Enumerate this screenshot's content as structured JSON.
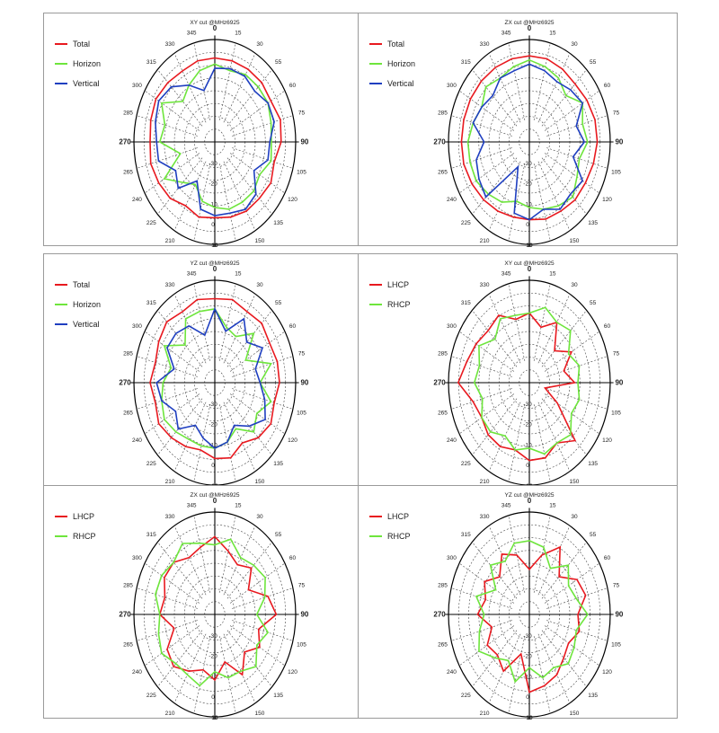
{
  "chart_data": [
    {
      "type": "line",
      "polar": true,
      "title": "XY cut @MHz6925",
      "angle_labels": [
        "0",
        "15",
        "30",
        "55",
        "60",
        "75",
        "90",
        "105",
        "120",
        "135",
        "150",
        "165",
        "180",
        "195",
        "210",
        "225",
        "240",
        "265",
        "270",
        "285",
        "300",
        "315",
        "330",
        "345"
      ],
      "radial_labels": [
        "-30",
        "-20",
        "-10",
        "0",
        "10"
      ],
      "rlim": [
        -40,
        10
      ],
      "legend_position": "top-left",
      "series": [
        {
          "name": "Total",
          "color": "#e8191f",
          "values": [
            1,
            1,
            1,
            1,
            0,
            2,
            1,
            -2,
            0,
            -1,
            -1,
            -2,
            -3,
            -2,
            -4,
            -1,
            0,
            1,
            0,
            1,
            2,
            1,
            0,
            1
          ]
        },
        {
          "name": "Horizon",
          "color": "#6ee53c",
          "values": [
            -2,
            -4,
            -2,
            -2,
            -2,
            -4,
            -5,
            -4,
            -8,
            -6,
            -6,
            -6,
            -8,
            -10,
            -16,
            -12,
            -4,
            -18,
            -6,
            -8,
            -2,
            -12,
            -8,
            -4
          ]
        },
        {
          "name": "Vertical",
          "color": "#1f3fc0",
          "values": [
            -4,
            -3,
            -3,
            -5,
            -2,
            -2,
            -6,
            -6,
            -12,
            -4,
            -2,
            -4,
            -4,
            -6,
            -18,
            -8,
            -12,
            -4,
            -4,
            -2,
            0,
            -2,
            -8,
            -14
          ]
        }
      ]
    },
    {
      "type": "line",
      "polar": true,
      "title": "ZX cut @MHz6925",
      "angle_labels": [
        "0",
        "15",
        "30",
        "55",
        "60",
        "75",
        "90",
        "105",
        "120",
        "135",
        "150",
        "165",
        "180",
        "195",
        "210",
        "225",
        "240",
        "265",
        "270",
        "285",
        "300",
        "315",
        "330",
        "345"
      ],
      "radial_labels": [
        "-30",
        "-20",
        "-10",
        "0",
        "10"
      ],
      "rlim": [
        -40,
        10
      ],
      "legend_position": "top-left",
      "series": [
        {
          "name": "Total",
          "color": "#e8191f",
          "values": [
            2,
            2,
            1,
            0,
            1,
            2,
            2,
            1,
            0,
            0,
            -1,
            -1,
            -2,
            -2,
            -1,
            0,
            1,
            2,
            2,
            2,
            2,
            2,
            2,
            2
          ]
        },
        {
          "name": "Horizon",
          "color": "#6ee53c",
          "values": [
            0,
            -2,
            -4,
            -8,
            -2,
            -6,
            -4,
            -8,
            -6,
            -2,
            -4,
            -6,
            -8,
            -10,
            -6,
            -4,
            -2,
            -2,
            -2,
            -4,
            -6,
            -2,
            -4,
            -2
          ]
        },
        {
          "name": "Vertical",
          "color": "#1f3fc0",
          "values": [
            -2,
            -4,
            -6,
            -4,
            -2,
            -10,
            -6,
            -12,
            -2,
            -4,
            -2,
            -6,
            -2,
            -4,
            -26,
            -2,
            -4,
            -6,
            -12,
            -4,
            -6,
            -8,
            -4,
            -4
          ]
        }
      ]
    },
    {
      "type": "line",
      "polar": true,
      "title": "YZ cut @MHz6925",
      "angle_labels": [
        "0",
        "15",
        "30",
        "55",
        "60",
        "75",
        "90",
        "105",
        "120",
        "135",
        "150",
        "165",
        "180",
        "195",
        "210",
        "225",
        "240",
        "265",
        "270",
        "285",
        "300",
        "315",
        "330",
        "345"
      ],
      "radial_labels": [
        "-30",
        "-20",
        "-10",
        "0",
        "10"
      ],
      "rlim": [
        -40,
        10
      ],
      "legend_position": "top-left",
      "series": [
        {
          "name": "Total",
          "color": "#e8191f",
          "values": [
            1,
            2,
            0,
            1,
            -1,
            0,
            0,
            -2,
            0,
            -2,
            -6,
            -2,
            -3,
            -6,
            -4,
            -2,
            0,
            -2,
            0,
            -2,
            0,
            2,
            0,
            2
          ]
        },
        {
          "name": "Horizon",
          "color": "#6ee53c",
          "values": [
            -4,
            -12,
            -14,
            -6,
            -18,
            -4,
            -12,
            -4,
            -10,
            -6,
            -14,
            -10,
            -8,
            -8,
            -8,
            -6,
            -4,
            -6,
            -8,
            -12,
            -4,
            -14,
            -4,
            -4
          ]
        },
        {
          "name": "Vertical",
          "color": "#1f3fc0",
          "values": [
            -4,
            -14,
            -4,
            -12,
            -6,
            -14,
            -12,
            -8,
            -4,
            -10,
            -16,
            -10,
            -8,
            -12,
            -16,
            -8,
            -12,
            -6,
            -4,
            -14,
            -6,
            -6,
            -8,
            -16
          ]
        }
      ]
    },
    {
      "type": "line",
      "polar": true,
      "title": "XY cut @MHz6925",
      "angle_labels": [
        "0",
        "15",
        "30",
        "55",
        "60",
        "75",
        "90",
        "105",
        "120",
        "135",
        "150",
        "165",
        "180",
        "195",
        "210",
        "225",
        "240",
        "265",
        "270",
        "285",
        "300",
        "315",
        "330",
        "345"
      ],
      "radial_labels": [
        "-30",
        "-20",
        "-10",
        "0",
        "10"
      ],
      "rlim": [
        -40,
        10
      ],
      "legend_position": "top-left",
      "series": [
        {
          "name": "LHCP",
          "color": "#e8191f",
          "values": [
            -6,
            -12,
            -6,
            -18,
            -10,
            -18,
            -12,
            -30,
            -20,
            0,
            -6,
            -2,
            -2,
            -6,
            -4,
            -4,
            -6,
            -4,
            4,
            0,
            -2,
            -4,
            -2,
            -8
          ]
        },
        {
          "name": "RHCP",
          "color": "#6ee53c",
          "values": [
            -6,
            -2,
            -6,
            -4,
            -12,
            -8,
            -10,
            -8,
            -10,
            -4,
            -6,
            -4,
            -8,
            -6,
            -10,
            -6,
            -6,
            -10,
            -6,
            -8,
            -4,
            -10,
            -4,
            -6
          ]
        }
      ]
    },
    {
      "type": "line",
      "polar": true,
      "title": "ZX cut @MHz6925",
      "angle_labels": [
        "0",
        "15",
        "30",
        "55",
        "60",
        "75",
        "90",
        "105",
        "120",
        "135",
        "150",
        "165",
        "180",
        "195",
        "210",
        "225",
        "240",
        "265",
        "270",
        "285",
        "300",
        "315",
        "330",
        "345"
      ],
      "radial_labels": [
        "-30",
        "-20",
        "-10",
        "0",
        "10"
      ],
      "rlim": [
        -40,
        10
      ],
      "legend_position": "top-left",
      "series": [
        {
          "name": "LHCP",
          "color": "#e8191f",
          "values": [
            -2,
            -8,
            -12,
            -8,
            -16,
            -6,
            -2,
            -12,
            -8,
            -14,
            -6,
            -16,
            -8,
            -12,
            -8,
            -4,
            -6,
            -14,
            -6,
            -8,
            -4,
            -4,
            -8,
            -6
          ]
        },
        {
          "name": "RHCP",
          "color": "#6ee53c",
          "values": [
            -6,
            -2,
            -8,
            -6,
            -4,
            -8,
            -14,
            -6,
            -10,
            -4,
            -8,
            -8,
            -12,
            -4,
            -6,
            -6,
            -2,
            -4,
            -6,
            -2,
            -2,
            -4,
            0,
            -4
          ]
        }
      ]
    },
    {
      "type": "line",
      "polar": true,
      "title": "YZ cut @MHz6925",
      "angle_labels": [
        "0",
        "15",
        "30",
        "55",
        "60",
        "75",
        "90",
        "105",
        "120",
        "135",
        "150",
        "165",
        "180",
        "195",
        "210",
        "225",
        "240",
        "265",
        "270",
        "285",
        "300",
        "315",
        "330",
        "345"
      ],
      "radial_labels": [
        "-30",
        "-20",
        "-10",
        "0",
        "10"
      ],
      "rlim": [
        -40,
        10
      ],
      "legend_position": "top-left",
      "series": [
        {
          "name": "LHCP",
          "color": "#e8191f",
          "values": [
            -18,
            -10,
            -2,
            -14,
            -6,
            -4,
            -10,
            -8,
            -12,
            -10,
            -6,
            -4,
            -2,
            -20,
            -8,
            -12,
            -10,
            -16,
            -8,
            -12,
            -8,
            -14,
            -6,
            -10
          ]
        },
        {
          "name": "RHCP",
          "color": "#6ee53c",
          "values": [
            -4,
            -6,
            -14,
            -6,
            -12,
            -10,
            -4,
            -10,
            -8,
            -6,
            -10,
            -8,
            -14,
            -6,
            -14,
            -10,
            -4,
            -8,
            -12,
            -6,
            -16,
            -6,
            -10,
            -4
          ]
        }
      ]
    }
  ]
}
